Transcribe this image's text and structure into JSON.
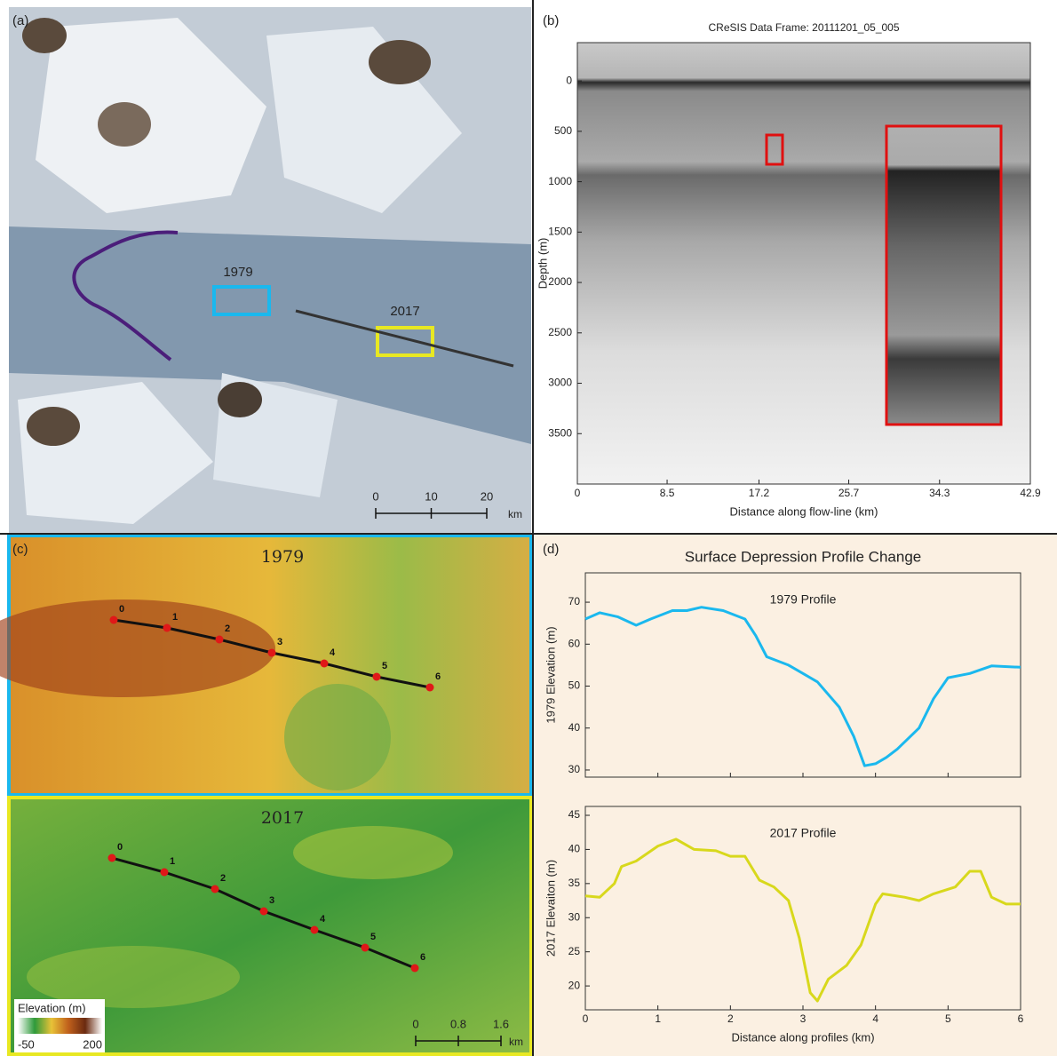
{
  "panels": {
    "a": {
      "label": "(a)",
      "annotations": [
        "1979",
        "2017"
      ],
      "scale_bar": {
        "ticks": [
          0,
          10,
          20
        ],
        "unit": "km"
      }
    },
    "b": {
      "label": "(b)"
    },
    "c": {
      "label": "(c)",
      "maps": [
        "1979",
        "2017"
      ],
      "points": [
        0,
        1,
        2,
        3,
        4,
        5,
        6
      ],
      "colorbar": {
        "title": "Elevation (m)",
        "min": -50,
        "max": 200
      },
      "scale_bar": {
        "ticks": [
          0,
          0.8,
          1.6
        ],
        "unit": "km"
      }
    },
    "d": {
      "label": "(d)",
      "title": "Surface Depression Profile Change"
    }
  },
  "chart_data": [
    {
      "type": "radargram",
      "title": "CReSIS Data Frame: 20111201_05_005",
      "x_label": "Distance along flow-line (km)",
      "y_label": "Depth (m)",
      "xlim": [
        0,
        42.9
      ],
      "xticks": [
        0,
        8.5,
        17.2,
        25.7,
        34.3,
        42.9
      ],
      "ylim": [
        4000,
        -380
      ],
      "yticks": [
        0,
        500,
        1000,
        1500,
        2000,
        2500,
        3000,
        3500
      ]
    },
    {
      "type": "line",
      "annotation": "1979 Profile",
      "y_label": "1979 Elevation (m)",
      "color": "#1ab8ee",
      "xlim": [
        0,
        6
      ],
      "xticks": [
        0,
        1,
        2,
        3,
        4,
        5,
        6
      ],
      "show_xtick_labels": false,
      "ylim": [
        28.3,
        77
      ],
      "yticks": [
        30,
        40,
        50,
        60,
        70
      ],
      "x": [
        0,
        0.2,
        0.45,
        0.7,
        0.9,
        1.2,
        1.4,
        1.6,
        1.9,
        2.2,
        2.35,
        2.5,
        2.8,
        3.0,
        3.2,
        3.5,
        3.7,
        3.85,
        4.0,
        4.15,
        4.3,
        4.6,
        4.8,
        5.0,
        5.3,
        5.6,
        6.0
      ],
      "values": [
        66,
        67.5,
        66.5,
        64.5,
        66,
        68,
        68,
        68.8,
        68,
        66,
        62,
        57,
        55,
        53,
        51,
        45,
        38,
        31,
        31.5,
        33,
        35,
        40,
        47,
        52,
        53,
        54.8,
        54.5
      ]
    },
    {
      "type": "line",
      "annotation": "2017 Profile",
      "y_label": "2017 Elevaiton (m)",
      "x_label": "Distance along profiles (km)",
      "color": "#d8d81c",
      "xlim": [
        0,
        6
      ],
      "xticks": [
        0,
        1,
        2,
        3,
        4,
        5,
        6
      ],
      "show_xtick_labels": true,
      "ylim": [
        16.5,
        46.3
      ],
      "yticks": [
        20,
        25,
        30,
        35,
        40,
        45
      ],
      "x": [
        0,
        0.2,
        0.4,
        0.5,
        0.7,
        1.0,
        1.25,
        1.5,
        1.8,
        2.0,
        2.2,
        2.4,
        2.6,
        2.8,
        2.95,
        3.1,
        3.2,
        3.35,
        3.6,
        3.8,
        4.0,
        4.1,
        4.4,
        4.6,
        4.8,
        5.1,
        5.3,
        5.45,
        5.6,
        5.8,
        6.0
      ],
      "values": [
        33.2,
        33,
        35,
        37.5,
        38.3,
        40.5,
        41.5,
        40,
        39.8,
        39,
        39,
        35.5,
        34.5,
        32.5,
        27,
        19,
        17.8,
        21,
        23,
        26,
        32,
        33.5,
        33,
        32.5,
        33.5,
        34.5,
        36.8,
        36.8,
        33,
        32,
        32
      ]
    }
  ]
}
